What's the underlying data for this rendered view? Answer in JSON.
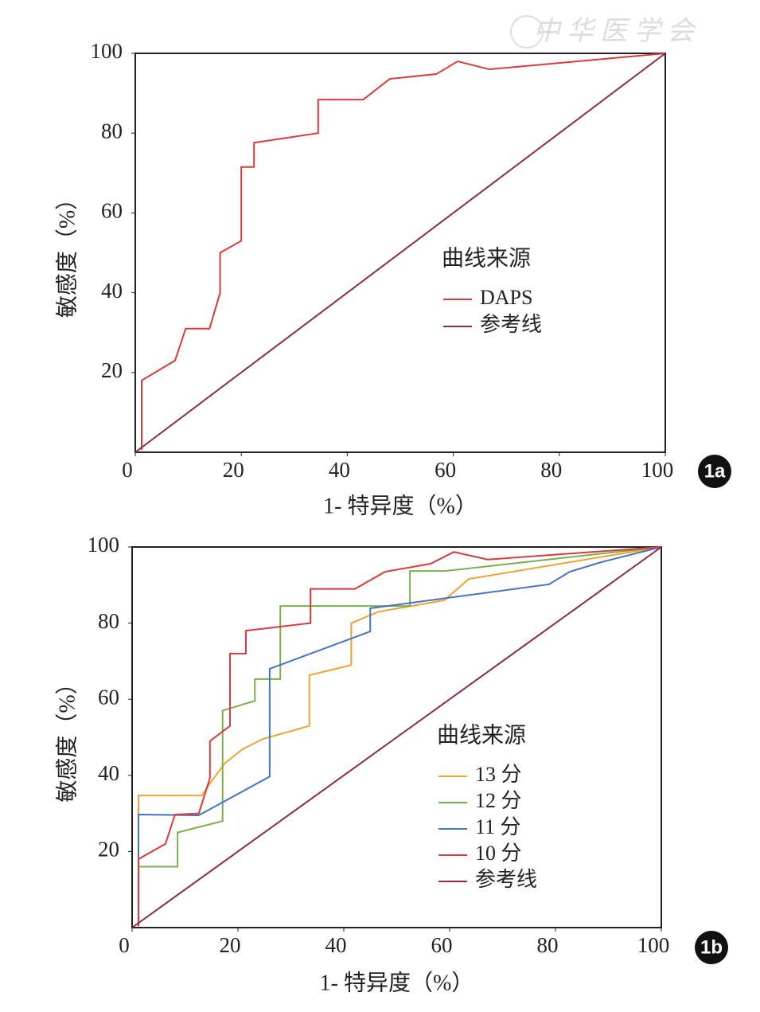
{
  "watermark": "中华医学会",
  "chart_data": [
    {
      "type": "line",
      "badge": "1a",
      "x_label": "1- 特异度（%）",
      "y_label": "敏感度（%）",
      "legend_title": "曲线来源",
      "xlim": [
        0,
        100
      ],
      "ylim": [
        0,
        100
      ],
      "xticks": [
        0,
        20,
        40,
        60,
        80,
        100
      ],
      "yticks": [
        20,
        40,
        60,
        80,
        100
      ],
      "series": [
        {
          "name": "DAPS",
          "color": "#d93a3a",
          "x": [
            1.2,
            1.2,
            7.5,
            9.5,
            14,
            16,
            16,
            20,
            20,
            22.4,
            22.4,
            34.5,
            34.5,
            43,
            48,
            56.8,
            60.8,
            66.8,
            100
          ],
          "values": [
            0.6,
            18,
            23,
            31,
            31,
            40,
            50,
            53,
            71.5,
            71.5,
            77.6,
            80,
            88.4,
            88.4,
            93.6,
            94.8,
            98,
            96,
            100
          ]
        },
        {
          "name": "参考线",
          "color": "#8b2a4a",
          "x": [
            0,
            100
          ],
          "values": [
            0,
            100
          ]
        }
      ]
    },
    {
      "type": "line",
      "badge": "1b",
      "x_label": "1- 特异度（%）",
      "y_label": "敏感度（%）",
      "legend_title": "曲线来源",
      "xlim": [
        0,
        100
      ],
      "ylim": [
        0,
        100
      ],
      "xticks": [
        0,
        20,
        40,
        60,
        80,
        100
      ],
      "yticks": [
        20,
        40,
        60,
        80,
        100
      ],
      "series": [
        {
          "name": "13 分",
          "color": "#f0a232",
          "x": [
            1.2,
            1.2,
            13.2,
            14.6,
            17.6,
            21,
            24.8,
            33.5,
            33.5,
            41.4,
            41.4,
            46.6,
            59,
            63.6,
            100
          ],
          "values": [
            0.4,
            34.7,
            34.7,
            37.7,
            43.3,
            47,
            49.6,
            53,
            66.3,
            69,
            80,
            83,
            86,
            91.6,
            100
          ]
        },
        {
          "name": "12 分",
          "color": "#79b04f",
          "x": [
            1.2,
            1.2,
            8.6,
            8.6,
            17.1,
            17.1,
            23.2,
            23.2,
            28,
            28,
            52.5,
            52.5,
            59.2,
            100
          ],
          "values": [
            0.4,
            16,
            16,
            25,
            28,
            57,
            59.6,
            65.3,
            65.3,
            84.5,
            84.5,
            93.7,
            93.7,
            100
          ]
        },
        {
          "name": "11 分",
          "color": "#4472c4",
          "x": [
            1.2,
            1.2,
            12.6,
            26,
            26,
            45,
            45,
            78.8,
            82.7,
            88.6,
            100
          ],
          "values": [
            0.4,
            29.7,
            29.5,
            39.7,
            68,
            77.8,
            83.9,
            90.2,
            93.5,
            96,
            100
          ]
        },
        {
          "name": "10 分",
          "color": "#d93a3a",
          "x": [
            1.2,
            1.2,
            6.3,
            8.1,
            12.6,
            14.7,
            14.7,
            18.5,
            18.5,
            21.5,
            21.5,
            33.7,
            33.7,
            42.1,
            47.8,
            56.4,
            60.8,
            67.2,
            100
          ],
          "values": [
            0.4,
            18,
            22,
            29.7,
            30,
            39.3,
            49,
            53,
            72,
            72,
            78,
            80,
            89,
            89,
            93.5,
            95.6,
            98.7,
            96.7,
            100
          ]
        },
        {
          "name": "参考线",
          "color": "#8b2a4a",
          "x": [
            0,
            100
          ],
          "values": [
            0,
            100
          ]
        }
      ]
    }
  ]
}
